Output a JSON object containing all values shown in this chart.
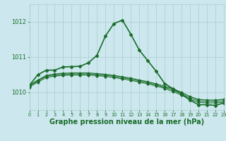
{
  "background_color": "#cce8ee",
  "grid_color": "#aacccc",
  "line_color": "#1a6b2a",
  "xlabel": "Graphe pression niveau de la mer (hPa)",
  "xlabel_fontsize": 7,
  "xlabel_bold": true,
  "xlim": [
    0,
    23
  ],
  "ylim": [
    1009.5,
    1012.5
  ],
  "yticks": [
    1010,
    1011,
    1012
  ],
  "xticks": [
    0,
    1,
    2,
    3,
    4,
    5,
    6,
    7,
    8,
    9,
    10,
    11,
    12,
    13,
    14,
    15,
    16,
    17,
    18,
    19,
    20,
    21,
    22,
    23
  ],
  "series": [
    {
      "x": [
        0,
        1,
        2,
        3,
        4,
        5,
        6,
        7,
        8,
        9,
        10,
        11,
        12,
        13,
        14,
        15,
        16,
        17,
        18,
        19,
        20,
        21,
        22,
        23
      ],
      "y": [
        1010.2,
        1010.35,
        1010.48,
        1010.52,
        1010.54,
        1010.55,
        1010.55,
        1010.55,
        1010.53,
        1010.51,
        1010.48,
        1010.44,
        1010.4,
        1010.35,
        1010.3,
        1010.24,
        1010.17,
        1010.1,
        1010.0,
        1009.88,
        1009.8,
        1009.78,
        1009.78,
        1009.8
      ],
      "marker": null,
      "linewidth": 0.9
    },
    {
      "x": [
        0,
        1,
        2,
        3,
        4,
        5,
        6,
        7,
        8,
        9,
        10,
        11,
        12,
        13,
        14,
        15,
        16,
        17,
        18,
        19,
        20,
        21,
        22,
        23
      ],
      "y": [
        1010.18,
        1010.32,
        1010.45,
        1010.49,
        1010.51,
        1010.52,
        1010.52,
        1010.52,
        1010.5,
        1010.48,
        1010.45,
        1010.41,
        1010.37,
        1010.32,
        1010.27,
        1010.21,
        1010.14,
        1010.06,
        1009.96,
        1009.84,
        1009.76,
        1009.74,
        1009.74,
        1009.76
      ],
      "marker": null,
      "linewidth": 0.7
    },
    {
      "x": [
        0,
        1,
        2,
        3,
        4,
        5,
        6,
        7,
        8,
        9,
        10,
        11,
        12,
        13,
        14,
        15,
        16,
        17,
        18,
        19,
        20,
        21,
        22,
        23
      ],
      "y": [
        1010.15,
        1010.29,
        1010.42,
        1010.46,
        1010.48,
        1010.49,
        1010.49,
        1010.49,
        1010.47,
        1010.45,
        1010.42,
        1010.38,
        1010.34,
        1010.29,
        1010.24,
        1010.18,
        1010.11,
        1010.02,
        1009.92,
        1009.8,
        1009.72,
        1009.7,
        1009.7,
        1009.72
      ],
      "marker": null,
      "linewidth": 0.7
    },
    {
      "x": [
        0,
        1,
        2,
        3,
        4,
        5,
        6,
        7,
        8,
        9,
        10,
        11,
        12,
        13,
        14,
        15,
        16,
        17,
        18,
        19,
        20,
        21,
        22,
        23
      ],
      "y": [
        1010.2,
        1010.5,
        1010.63,
        1010.63,
        1010.72,
        1010.73,
        1010.74,
        1010.84,
        1011.05,
        1011.6,
        1011.95,
        1012.05,
        1011.65,
        1011.2,
        1010.9,
        1010.6,
        1010.25,
        1010.1,
        1009.95,
        1009.78,
        1009.65,
        1009.65,
        1009.63,
        1009.7
      ],
      "marker": "D",
      "markersize": 2.5,
      "linewidth": 1.2
    }
  ]
}
